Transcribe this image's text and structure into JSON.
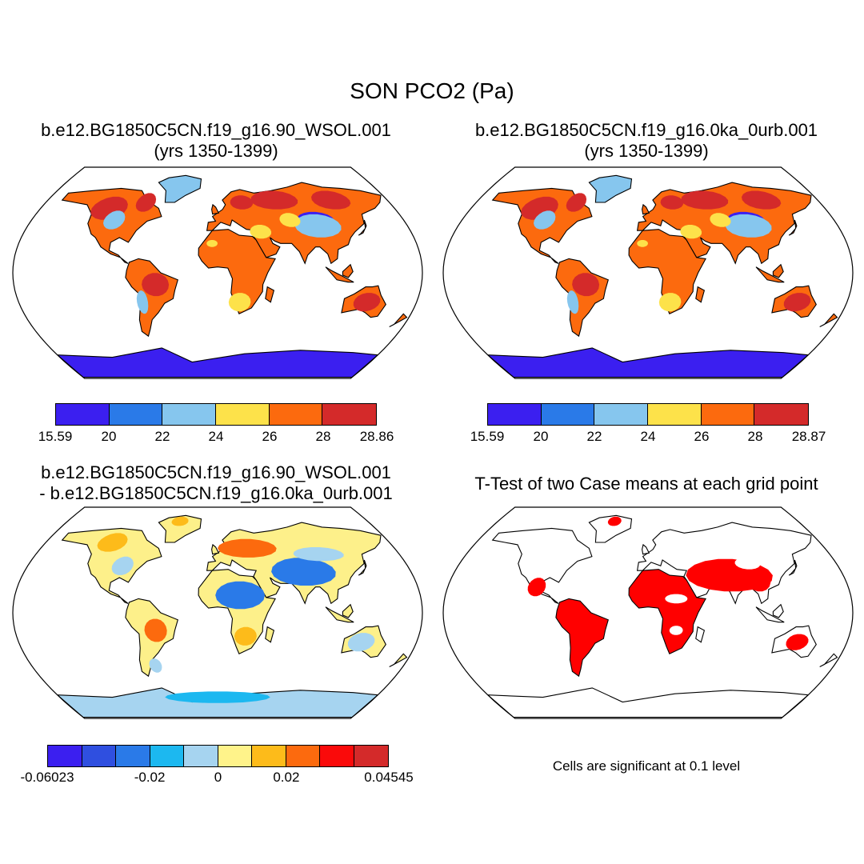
{
  "figure": {
    "title": "SON PCO2 (Pa)",
    "colors": {
      "ocean": "#ffffff",
      "coastline": "#000000",
      "frame": "#000000",
      "significance": "#ff0000"
    }
  },
  "panels": [
    {
      "id": "case1",
      "title_line1": "b.e12.BG1850C5CN.f19_g16.90_WSOL.001",
      "title_line2": "(yrs 1350-1399)",
      "land_color": "#fc6a0e",
      "colorbar": {
        "colors": [
          "#3b1ff0",
          "#2a7ae8",
          "#86c6ee",
          "#fde24a",
          "#fc6a0e",
          "#d42a2a"
        ],
        "labels": [
          "15.59",
          "20",
          "22",
          "24",
          "26",
          "28",
          "28.86"
        ]
      }
    },
    {
      "id": "case2",
      "title_line1": "b.e12.BG1850C5CN.f19_g16.0ka_0urb.001",
      "title_line2": "(yrs 1350-1399)",
      "land_color": "#fc6a0e",
      "colorbar": {
        "colors": [
          "#3b1ff0",
          "#2a7ae8",
          "#86c6ee",
          "#fde24a",
          "#fc6a0e",
          "#d42a2a"
        ],
        "labels": [
          "15.59",
          "20",
          "22",
          "24",
          "26",
          "28",
          "28.87"
        ]
      }
    },
    {
      "id": "difference",
      "title_line1": "b.e12.BG1850C5CN.f19_g16.90_WSOL.001",
      "title_line2": "- b.e12.BG1850C5CN.f19_g16.0ka_0urb.001",
      "land_color": "#fdf08a",
      "colorbar": {
        "colors": [
          "#3b1ff0",
          "#2f4fe0",
          "#2a7ae8",
          "#1cb8f0",
          "#a6d4f0",
          "#fff38a",
          "#fdbb1a",
          "#fc6a0e",
          "#fa0a0a",
          "#d42a2a"
        ],
        "labels": [
          "-0.06023",
          "-0.02",
          "0",
          "0.02",
          "0.04545"
        ],
        "label_slots": [
          0,
          3,
          5,
          7,
          10
        ]
      }
    },
    {
      "id": "ttest",
      "title_line1": "T-Test of two Case means at each grid point",
      "note": "Cells are significant at 0.1 level"
    }
  ]
}
